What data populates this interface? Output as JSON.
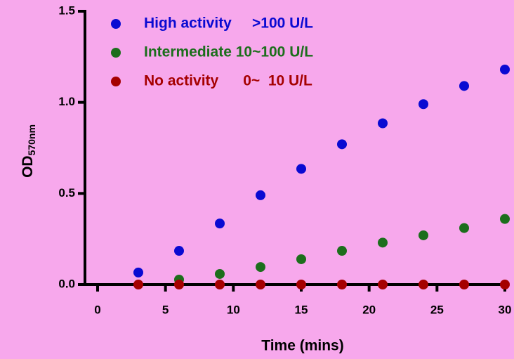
{
  "chart_data": {
    "type": "scatter",
    "x_label": "Time (mins)",
    "y_label": "OD",
    "y_label_sub": "570nm",
    "x": [
      3,
      6,
      9,
      12,
      15,
      18,
      21,
      24,
      27,
      30
    ],
    "series": [
      {
        "name": "High activity     >100 U/L",
        "color": "#0a0ad2",
        "values": [
          0.066,
          0.185,
          0.335,
          0.49,
          0.635,
          0.77,
          0.885,
          0.99,
          1.09,
          1.18
        ]
      },
      {
        "name": "Intermediate 10~100 U/L",
        "color": "#1c6e1c",
        "values": [
          null,
          0.027,
          0.058,
          0.096,
          0.139,
          0.185,
          0.23,
          0.27,
          0.31,
          0.36
        ]
      },
      {
        "name": "No activity      0~  10 U/L",
        "color": "#a50000",
        "values": [
          0,
          0,
          0,
          0,
          0,
          0,
          0,
          0,
          0,
          0
        ]
      }
    ],
    "xlim": [
      0,
      30
    ],
    "xticks": [
      0,
      5,
      10,
      15,
      20,
      25,
      30
    ],
    "ylim": [
      0,
      1.5
    ],
    "yticks": [
      {
        "value": 0,
        "label": "0.0"
      },
      0.5,
      {
        "value": 1,
        "label": "1.0"
      },
      1.5
    ]
  }
}
